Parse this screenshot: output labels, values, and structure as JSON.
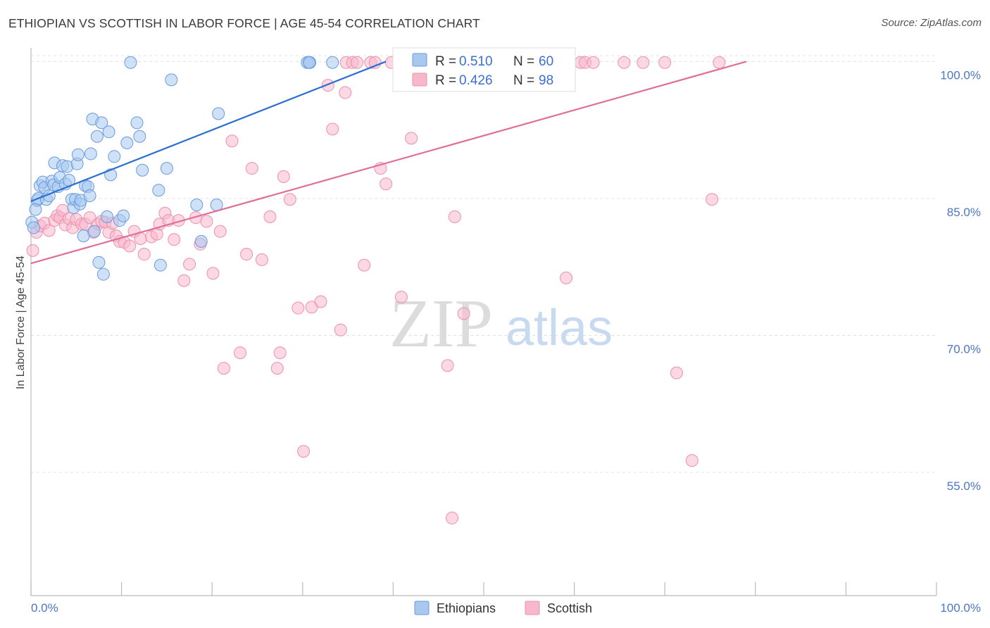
{
  "title": "ETHIOPIAN VS SCOTTISH IN LABOR FORCE | AGE 45-54 CORRELATION CHART",
  "source": "Source: ZipAtlas.com",
  "watermark": {
    "zip": "ZIP",
    "atlas": "atlas"
  },
  "colors": {
    "ethiopians_fill": "#a8c8f0",
    "ethiopians_stroke": "#6a9ae0",
    "ethiopians_line": "#2a6fd0",
    "scottish_fill": "#f8b8cc",
    "scottish_stroke": "#ee90ae",
    "scottish_line": "#e06e98",
    "tick_text": "#4a78c4"
  },
  "legend": {
    "r_label": "R =",
    "n_label": "N =",
    "rows": [
      {
        "series": "Ethiopians",
        "r": "0.510",
        "n": "60"
      },
      {
        "series": "Scottish",
        "r": "0.426",
        "n": "98"
      }
    ]
  },
  "chart_data": {
    "type": "scatter",
    "title": "ETHIOPIAN VS SCOTTISH IN LABOR FORCE | AGE 45-54 CORRELATION CHART",
    "xlabel": "",
    "ylabel": "In Labor Force | Age 45-54",
    "xlim": [
      0,
      100
    ],
    "ylim": [
      41.5,
      101.5
    ],
    "x_tick_labels": [
      "0.0%",
      "100.0%"
    ],
    "y_ticks": [
      55,
      70,
      85,
      100
    ],
    "y_tick_labels": [
      "55.0%",
      "70.0%",
      "85.0%",
      "100.0%"
    ],
    "grid": true,
    "legend_position": "top-center",
    "series": [
      {
        "name": "Ethiopians",
        "trend": {
          "x0": 0,
          "y0": 84.7,
          "x1": 39.2,
          "y1": 100.0
        },
        "points": [
          [
            0.1,
            82.4
          ],
          [
            0.3,
            81.8
          ],
          [
            0.5,
            83.8
          ],
          [
            0.7,
            84.8
          ],
          [
            0.8,
            85.0
          ],
          [
            1.0,
            86.4
          ],
          [
            1.3,
            86.8
          ],
          [
            1.5,
            86.2
          ],
          [
            1.7,
            84.9
          ],
          [
            2.0,
            85.3
          ],
          [
            2.3,
            86.9
          ],
          [
            2.5,
            86.5
          ],
          [
            2.6,
            88.9
          ],
          [
            3.0,
            86.3
          ],
          [
            3.2,
            87.3
          ],
          [
            3.5,
            88.6
          ],
          [
            3.8,
            86.6
          ],
          [
            4.0,
            88.5
          ],
          [
            4.2,
            87.0
          ],
          [
            4.5,
            84.9
          ],
          [
            4.7,
            84.0
          ],
          [
            4.9,
            84.9
          ],
          [
            5.1,
            88.8
          ],
          [
            5.2,
            89.8
          ],
          [
            5.4,
            84.4
          ],
          [
            5.5,
            84.8
          ],
          [
            5.8,
            80.9
          ],
          [
            6.0,
            86.4
          ],
          [
            6.3,
            86.3
          ],
          [
            6.5,
            85.3
          ],
          [
            6.6,
            89.9
          ],
          [
            6.8,
            93.7
          ],
          [
            7.0,
            81.4
          ],
          [
            7.3,
            91.8
          ],
          [
            7.5,
            78.0
          ],
          [
            7.8,
            93.3
          ],
          [
            8.0,
            76.7
          ],
          [
            8.4,
            83.0
          ],
          [
            8.6,
            92.3
          ],
          [
            8.8,
            87.6
          ],
          [
            9.2,
            89.6
          ],
          [
            9.8,
            82.6
          ],
          [
            10.2,
            83.1
          ],
          [
            10.6,
            91.1
          ],
          [
            11.0,
            99.9
          ],
          [
            11.7,
            93.3
          ],
          [
            12.0,
            91.8
          ],
          [
            12.3,
            88.1
          ],
          [
            14.1,
            85.9
          ],
          [
            14.3,
            77.7
          ],
          [
            15.5,
            98.0
          ],
          [
            15.0,
            88.3
          ],
          [
            18.3,
            84.3
          ],
          [
            18.8,
            80.3
          ],
          [
            20.5,
            84.3
          ],
          [
            20.7,
            94.3
          ],
          [
            30.5,
            99.9
          ],
          [
            30.8,
            99.9
          ],
          [
            33.3,
            99.9
          ],
          [
            30.7,
            99.9
          ]
        ]
      },
      {
        "name": "Scottish",
        "trend": {
          "x0": 0,
          "y0": 77.9,
          "x1": 79.0,
          "y1": 100.0
        },
        "points": [
          [
            0.2,
            79.3
          ],
          [
            0.6,
            81.3
          ],
          [
            1.0,
            82.0
          ],
          [
            1.5,
            82.3
          ],
          [
            2.0,
            81.5
          ],
          [
            2.6,
            82.6
          ],
          [
            2.9,
            83.1
          ],
          [
            3.2,
            82.9
          ],
          [
            3.5,
            83.7
          ],
          [
            3.8,
            82.1
          ],
          [
            4.2,
            82.8
          ],
          [
            4.6,
            81.8
          ],
          [
            5.0,
            82.7
          ],
          [
            5.6,
            82.2
          ],
          [
            6.0,
            82.2
          ],
          [
            6.5,
            82.9
          ],
          [
            6.9,
            81.3
          ],
          [
            7.4,
            82.2
          ],
          [
            7.8,
            82.5
          ],
          [
            8.2,
            82.4
          ],
          [
            8.6,
            81.3
          ],
          [
            9.0,
            82.3
          ],
          [
            9.4,
            80.9
          ],
          [
            9.8,
            80.3
          ],
          [
            10.3,
            80.2
          ],
          [
            10.9,
            79.8
          ],
          [
            11.4,
            81.4
          ],
          [
            12.1,
            80.6
          ],
          [
            12.5,
            78.9
          ],
          [
            13.3,
            80.8
          ],
          [
            13.9,
            81.1
          ],
          [
            14.2,
            82.2
          ],
          [
            14.8,
            83.4
          ],
          [
            15.2,
            82.6
          ],
          [
            15.8,
            80.5
          ],
          [
            16.3,
            82.6
          ],
          [
            16.9,
            76.0
          ],
          [
            17.5,
            77.8
          ],
          [
            18.2,
            82.9
          ],
          [
            18.7,
            80.0
          ],
          [
            19.4,
            82.5
          ],
          [
            20.1,
            76.8
          ],
          [
            20.9,
            81.4
          ],
          [
            21.3,
            66.4
          ],
          [
            22.2,
            91.3
          ],
          [
            23.1,
            68.1
          ],
          [
            23.8,
            78.9
          ],
          [
            24.4,
            88.3
          ],
          [
            25.5,
            78.3
          ],
          [
            26.4,
            83.0
          ],
          [
            27.2,
            66.4
          ],
          [
            27.5,
            68.1
          ],
          [
            27.9,
            87.4
          ],
          [
            28.6,
            84.9
          ],
          [
            29.5,
            73.0
          ],
          [
            30.1,
            57.3
          ],
          [
            31.0,
            73.1
          ],
          [
            32.0,
            73.7
          ],
          [
            32.8,
            97.4
          ],
          [
            33.3,
            92.6
          ],
          [
            34.2,
            70.6
          ],
          [
            34.7,
            96.6
          ],
          [
            34.8,
            99.9
          ],
          [
            35.5,
            99.9
          ],
          [
            36.0,
            99.9
          ],
          [
            36.8,
            77.7
          ],
          [
            37.5,
            99.9
          ],
          [
            38.0,
            99.9
          ],
          [
            38.6,
            88.3
          ],
          [
            39.2,
            86.6
          ],
          [
            39.8,
            99.9
          ],
          [
            40.9,
            74.2
          ],
          [
            42.0,
            91.6
          ],
          [
            42.5,
            99.9
          ],
          [
            42.8,
            99.9
          ],
          [
            44.0,
            99.9
          ],
          [
            46.0,
            66.7
          ],
          [
            46.5,
            50.0
          ],
          [
            46.8,
            83.0
          ],
          [
            47.8,
            72.4
          ],
          [
            49.6,
            99.9
          ],
          [
            50.2,
            99.9
          ],
          [
            50.8,
            99.9
          ],
          [
            51.3,
            99.9
          ],
          [
            52.5,
            99.9
          ],
          [
            53.8,
            99.9
          ],
          [
            58.3,
            99.9
          ],
          [
            59.1,
            76.3
          ],
          [
            60.7,
            99.9
          ],
          [
            61.2,
            99.9
          ],
          [
            62.1,
            99.9
          ],
          [
            65.5,
            99.9
          ],
          [
            67.6,
            99.9
          ],
          [
            70.0,
            99.9
          ],
          [
            71.3,
            65.9
          ],
          [
            73.0,
            56.3
          ],
          [
            75.2,
            84.9
          ],
          [
            76.0,
            99.9
          ]
        ]
      }
    ]
  }
}
